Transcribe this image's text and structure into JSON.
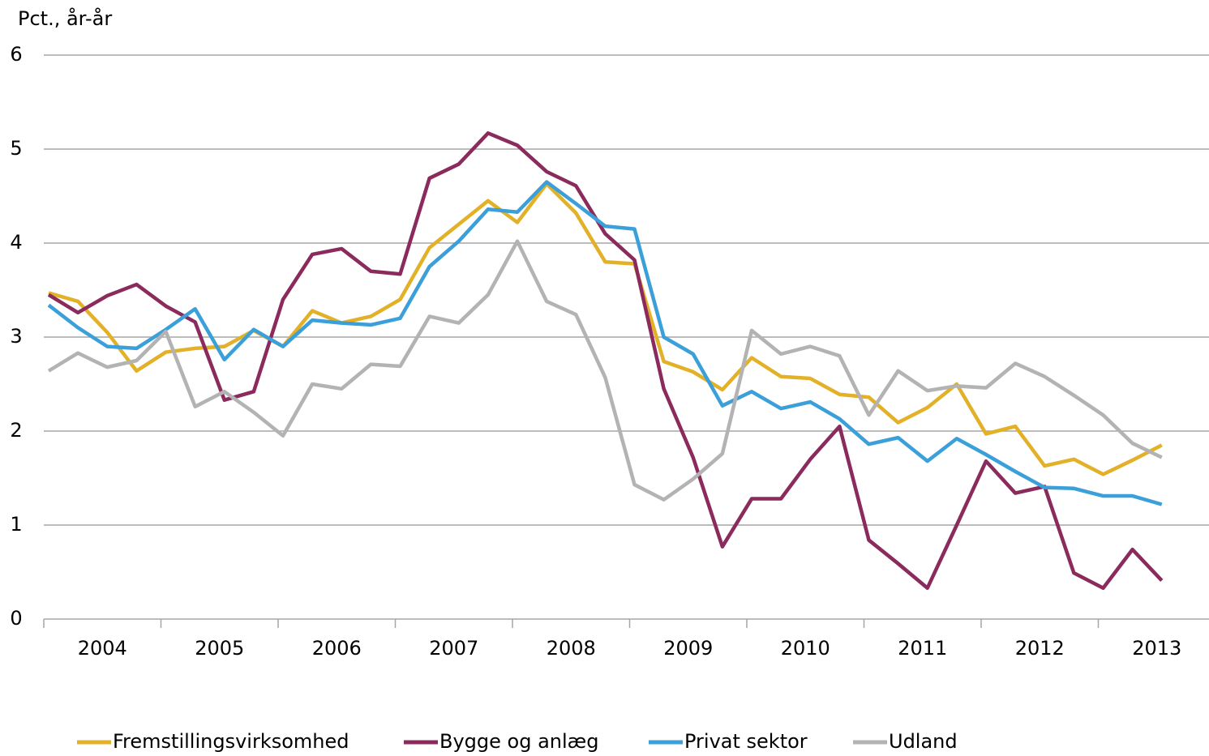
{
  "chart_data": {
    "type": "line",
    "y_label": "Pct., år-år",
    "x_labels": [
      "2004",
      "2005",
      "2006",
      "2007",
      "2008",
      "2009",
      "2010",
      "2011",
      "2012",
      "2013"
    ],
    "ylim": [
      0,
      6
    ],
    "yticks": [
      0,
      1,
      2,
      3,
      4,
      5,
      6
    ],
    "grid": true,
    "legend": "bottom",
    "series": [
      {
        "name": "Fremstillingsvirksomhed",
        "color": "#e2b128",
        "values": [
          3.47,
          3.38,
          3.05,
          2.64,
          2.84,
          2.88,
          2.9,
          3.07,
          2.9,
          3.28,
          3.15,
          3.22,
          3.4,
          3.95,
          4.2,
          4.45,
          4.22,
          4.63,
          4.32,
          3.8,
          3.78,
          2.74,
          2.63,
          2.44,
          2.78,
          2.58,
          2.56,
          2.39,
          2.36,
          2.09,
          2.25,
          2.5,
          1.97,
          2.05,
          1.63,
          1.7,
          1.54,
          1.69,
          1.85
        ]
      },
      {
        "name": "Bygge og anlæg",
        "color": "#8b2a5c",
        "values": [
          3.45,
          3.26,
          3.44,
          3.56,
          3.33,
          3.16,
          2.33,
          2.42,
          3.4,
          3.88,
          3.94,
          3.7,
          3.67,
          4.69,
          4.84,
          5.17,
          5.04,
          4.76,
          4.61,
          4.1,
          3.82,
          2.45,
          1.72,
          0.77,
          1.28,
          1.28,
          1.7,
          2.05,
          0.84,
          0.59,
          0.33,
          1.0,
          1.68,
          1.34,
          1.41,
          0.49,
          0.33,
          0.74,
          0.41
        ]
      },
      {
        "name": "Privat sektor",
        "color": "#3b9fd9",
        "values": [
          3.34,
          3.1,
          2.9,
          2.88,
          3.08,
          3.3,
          2.76,
          3.08,
          2.9,
          3.18,
          3.15,
          3.13,
          3.2,
          3.75,
          4.02,
          4.36,
          4.33,
          4.65,
          4.42,
          4.18,
          4.15,
          3.0,
          2.82,
          2.27,
          2.42,
          2.24,
          2.31,
          2.13,
          1.86,
          1.93,
          1.68,
          1.92,
          1.75,
          1.57,
          1.4,
          1.39,
          1.31,
          1.31,
          1.22
        ]
      },
      {
        "name": "Udland",
        "color": "#b3b3b3",
        "values": [
          2.64,
          2.83,
          2.68,
          2.75,
          3.06,
          2.26,
          2.42,
          2.2,
          1.95,
          2.5,
          2.45,
          2.71,
          2.69,
          3.22,
          3.15,
          3.45,
          4.02,
          3.38,
          3.24,
          2.57,
          1.43,
          1.27,
          1.49,
          1.76,
          3.07,
          2.82,
          2.9,
          2.8,
          2.17,
          2.64,
          2.43,
          2.48,
          2.46,
          2.72,
          2.58,
          2.38,
          2.17,
          1.87,
          1.72
        ]
      }
    ]
  }
}
